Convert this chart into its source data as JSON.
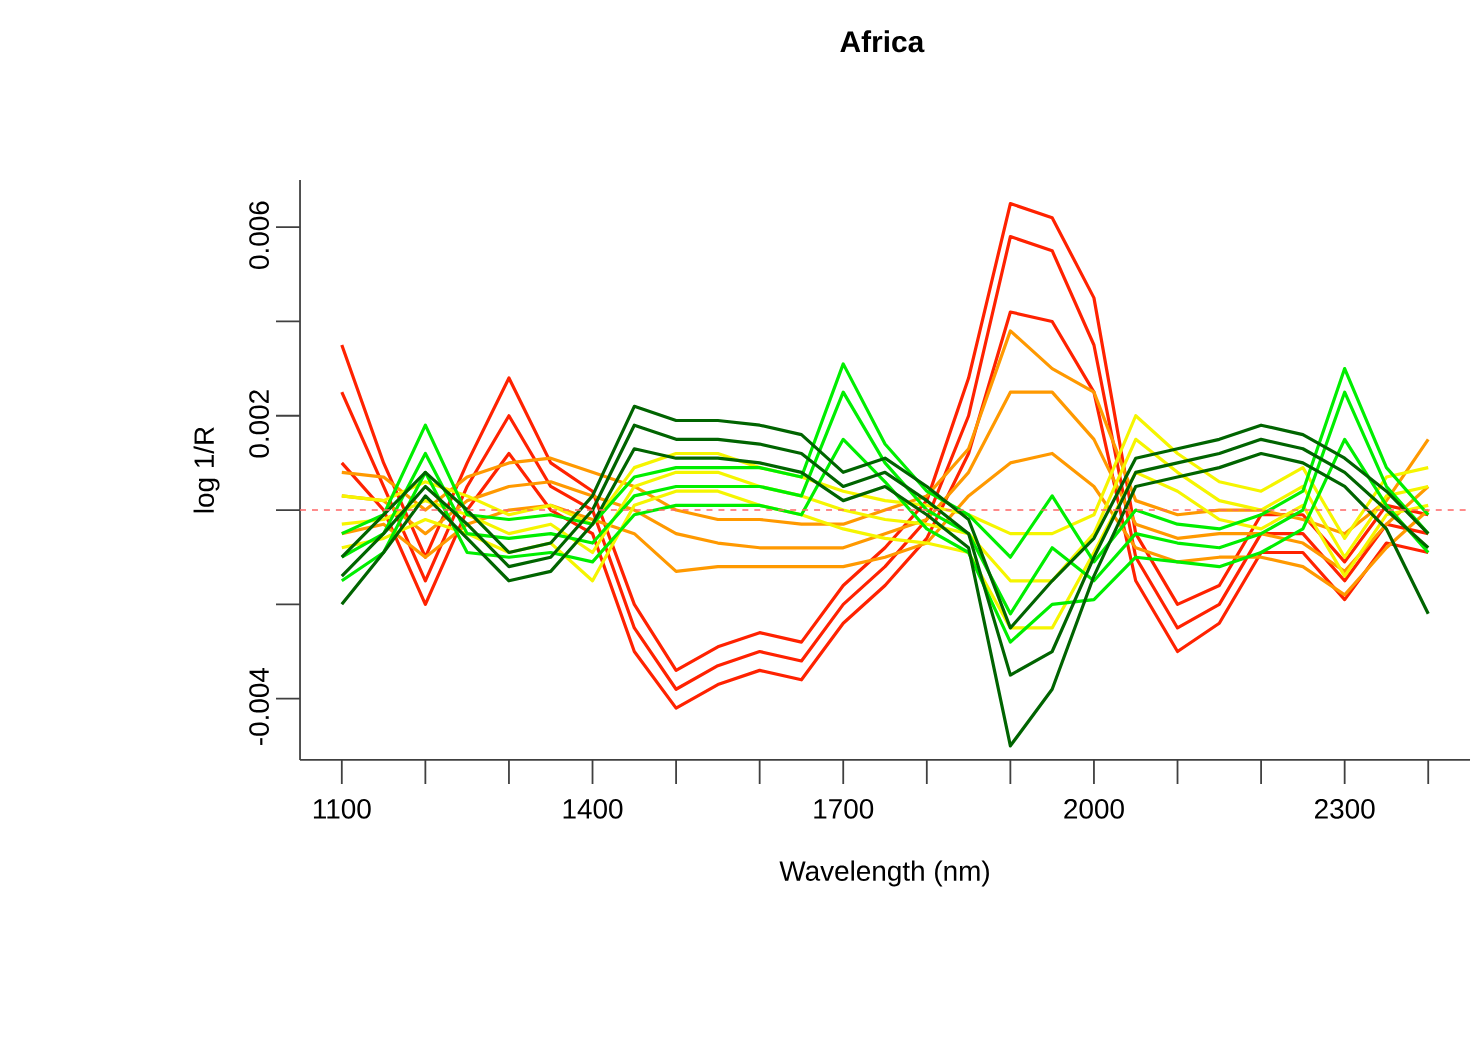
{
  "chart_data": {
    "type": "line",
    "title": "**Africa**",
    "xlabel": "Wavelength (nm)",
    "ylabel": "log 1/R",
    "x": [
      1100,
      1150,
      1200,
      1250,
      1300,
      1350,
      1400,
      1450,
      1500,
      1550,
      1600,
      1650,
      1700,
      1750,
      1800,
      1850,
      1900,
      1950,
      2000,
      2050,
      2100,
      2150,
      2200,
      2250,
      2300,
      2350,
      2400
    ],
    "series": [
      {
        "color": "#ff2200",
        "values": [
          0.0025,
          0.0005,
          -0.0015,
          0.0005,
          0.002,
          0.0005,
          0.0,
          -0.0025,
          -0.0038,
          -0.0033,
          -0.003,
          -0.0032,
          -0.002,
          -0.0012,
          -0.0002,
          0.002,
          0.0058,
          0.0055,
          0.0035,
          -0.001,
          -0.0025,
          -0.002,
          -0.0005,
          -0.0005,
          -0.0015,
          -0.0003,
          -0.0005
        ]
      },
      {
        "color": "#ff2200",
        "values": [
          0.001,
          0.0,
          -0.002,
          0.0,
          0.0012,
          0.0,
          -0.0005,
          -0.003,
          -0.0042,
          -0.0037,
          -0.0034,
          -0.0036,
          -0.0024,
          -0.0016,
          -0.0006,
          0.0012,
          0.0042,
          0.004,
          0.0025,
          -0.0015,
          -0.003,
          -0.0024,
          -0.0009,
          -0.0009,
          -0.0019,
          -0.0007,
          -0.0009
        ]
      },
      {
        "color": "#ff2200",
        "values": [
          0.0035,
          0.001,
          -0.001,
          0.001,
          0.0028,
          0.001,
          0.0004,
          -0.002,
          -0.0034,
          -0.0029,
          -0.0026,
          -0.0028,
          -0.0016,
          -0.0008,
          0.0002,
          0.0028,
          0.0065,
          0.0062,
          0.0045,
          -0.0005,
          -0.002,
          -0.0016,
          -0.0001,
          -0.0001,
          -0.0011,
          0.0001,
          -0.0001
        ]
      },
      {
        "color": "#ff9900",
        "values": [
          0.0003,
          0.0002,
          -0.0005,
          0.0002,
          0.0005,
          0.0006,
          0.0003,
          0.0,
          -0.0005,
          -0.0007,
          -0.0008,
          -0.0008,
          -0.0008,
          -0.0005,
          -0.0002,
          0.0008,
          0.0025,
          0.0025,
          0.0015,
          -0.0003,
          -0.0006,
          -0.0005,
          -0.0005,
          -0.0007,
          -0.0013,
          -0.0003,
          0.0005
        ]
      },
      {
        "color": "#ff9900",
        "values": [
          -0.0005,
          -0.0003,
          -0.001,
          -0.0003,
          0.0,
          0.0001,
          -0.0002,
          -0.0005,
          -0.0013,
          -0.0012,
          -0.0012,
          -0.0012,
          -0.0012,
          -0.001,
          -0.0007,
          0.0003,
          0.001,
          0.0012,
          0.0005,
          -0.0008,
          -0.0011,
          -0.001,
          -0.001,
          -0.0012,
          -0.0018,
          -0.0008,
          0.0
        ]
      },
      {
        "color": "#ff9900",
        "values": [
          0.0008,
          0.0007,
          0.0,
          0.0007,
          0.001,
          0.0011,
          0.0008,
          0.0005,
          0.0,
          -0.0002,
          -0.0002,
          -0.0003,
          -0.0003,
          0.0,
          0.0003,
          0.0013,
          0.0038,
          0.003,
          0.0025,
          0.0002,
          -0.0001,
          0.0,
          0.0,
          -0.0002,
          -0.0005,
          0.0002,
          0.0015
        ]
      },
      {
        "color": "#f5f500",
        "values": [
          -0.0003,
          -0.0002,
          0.0002,
          -0.0001,
          -0.0005,
          -0.0003,
          -0.0009,
          0.0005,
          0.0008,
          0.0008,
          0.0005,
          0.0003,
          0.0,
          -0.0002,
          -0.0003,
          -0.0005,
          -0.0015,
          -0.0015,
          -0.0005,
          0.0015,
          0.0008,
          0.0002,
          0.0,
          0.0005,
          -0.001,
          0.0003,
          0.0005
        ]
      },
      {
        "color": "#f5f500",
        "values": [
          -0.0008,
          -0.0006,
          -0.0002,
          -0.0005,
          -0.0009,
          -0.0007,
          -0.0015,
          0.0001,
          0.0004,
          0.0004,
          0.0001,
          -0.0001,
          -0.0004,
          -0.0006,
          -0.0007,
          -0.0009,
          -0.0025,
          -0.0025,
          -0.0009,
          0.0008,
          0.0004,
          -0.0002,
          -0.0004,
          0.0001,
          -0.0014,
          -0.0001,
          0.0001
        ]
      },
      {
        "color": "#f5f500",
        "values": [
          0.0003,
          0.0002,
          0.0006,
          0.0003,
          -0.0001,
          0.0001,
          -0.0003,
          0.0009,
          0.0012,
          0.0012,
          0.0009,
          0.0007,
          0.0004,
          0.0002,
          0.0001,
          -0.0001,
          -0.0005,
          -0.0005,
          -0.0001,
          0.002,
          0.0012,
          0.0006,
          0.0004,
          0.0009,
          -0.0006,
          0.0007,
          0.0009
        ]
      },
      {
        "color": "#00ee00",
        "values": [
          -0.001,
          -0.0005,
          0.0012,
          -0.0005,
          -0.0006,
          -0.0005,
          -0.0007,
          0.0003,
          0.0005,
          0.0005,
          0.0005,
          0.0003,
          0.0025,
          0.001,
          0.0,
          -0.0005,
          -0.0022,
          -0.0008,
          -0.0015,
          -0.0005,
          -0.0007,
          -0.0008,
          -0.0005,
          0.0,
          0.0025,
          0.0005,
          -0.0005
        ]
      },
      {
        "color": "#00ee00",
        "values": [
          -0.0015,
          -0.0009,
          0.0008,
          -0.0009,
          -0.001,
          -0.0009,
          -0.0011,
          -0.0001,
          0.0001,
          0.0001,
          0.0001,
          -0.0001,
          0.0015,
          0.0006,
          -0.0004,
          -0.0009,
          -0.0028,
          -0.002,
          -0.0019,
          -0.001,
          -0.0011,
          -0.0012,
          -0.0009,
          -0.0004,
          0.0015,
          0.0001,
          -0.0009
        ]
      },
      {
        "color": "#00ee00",
        "values": [
          -0.0005,
          -0.0001,
          0.0018,
          -0.0001,
          -0.0002,
          -0.0001,
          -0.0003,
          0.0007,
          0.0009,
          0.0009,
          0.0009,
          0.0007,
          0.0031,
          0.0014,
          0.0004,
          -0.0001,
          -0.001,
          0.0003,
          -0.0011,
          0.0,
          -0.0003,
          -0.0004,
          -0.0001,
          0.0004,
          0.003,
          0.0009,
          -0.0001
        ]
      },
      {
        "color": "#006400",
        "values": [
          -0.0014,
          -0.0005,
          0.0005,
          -0.0003,
          -0.0012,
          -0.001,
          0.0,
          0.0018,
          0.0015,
          0.0015,
          0.0014,
          0.0012,
          0.0005,
          0.0008,
          0.0002,
          -0.0005,
          -0.0035,
          -0.003,
          -0.001,
          0.0008,
          0.001,
          0.0012,
          0.0015,
          0.0013,
          0.0008,
          0.0,
          -0.0008
        ]
      },
      {
        "color": "#006400",
        "values": [
          -0.002,
          -0.0009,
          0.0003,
          -0.0006,
          -0.0015,
          -0.0013,
          -0.0003,
          0.0013,
          0.0011,
          0.0011,
          0.001,
          0.0008,
          0.0002,
          0.0005,
          -0.0001,
          -0.0008,
          -0.005,
          -0.0038,
          -0.0014,
          0.0005,
          0.0007,
          0.0009,
          0.0012,
          0.001,
          0.0005,
          -0.0004,
          -0.0022
        ]
      },
      {
        "color": "#006400",
        "values": [
          -0.001,
          -0.0001,
          0.0008,
          0.0,
          -0.0009,
          -0.0007,
          0.0003,
          0.0022,
          0.0019,
          0.0019,
          0.0018,
          0.0016,
          0.0008,
          0.0011,
          0.0005,
          -0.0002,
          -0.0025,
          -0.0015,
          -0.0006,
          0.0011,
          0.0013,
          0.0015,
          0.0018,
          0.0016,
          0.0011,
          0.0004,
          -0.0005
        ]
      }
    ],
    "xlim": [
      1050,
      2450
    ],
    "ylim": [
      -0.0053,
      0.007
    ],
    "xticks": [
      1100,
      {
        "value": 1200,
        "label": null
      },
      {
        "value": 1300,
        "label": null
      },
      1400,
      {
        "value": 1500,
        "label": null
      },
      {
        "value": 1600,
        "label": null
      },
      1700,
      {
        "value": 1800,
        "label": null
      },
      {
        "value": 1900,
        "label": null
      },
      2000,
      {
        "value": 2100,
        "label": null
      },
      {
        "value": 2200,
        "label": null
      },
      2300,
      {
        "value": 2400,
        "label": null
      }
    ],
    "yticks": [
      -0.004,
      {
        "value": -0.002,
        "label": null
      },
      {
        "value": 0,
        "label": null
      },
      0.002,
      {
        "value": 0.004,
        "label": null
      },
      0.006
    ],
    "ref_lines": [
      {
        "axis": "y",
        "value": 0,
        "color": "#ff6666",
        "line_style": "dashed"
      }
    ]
  }
}
